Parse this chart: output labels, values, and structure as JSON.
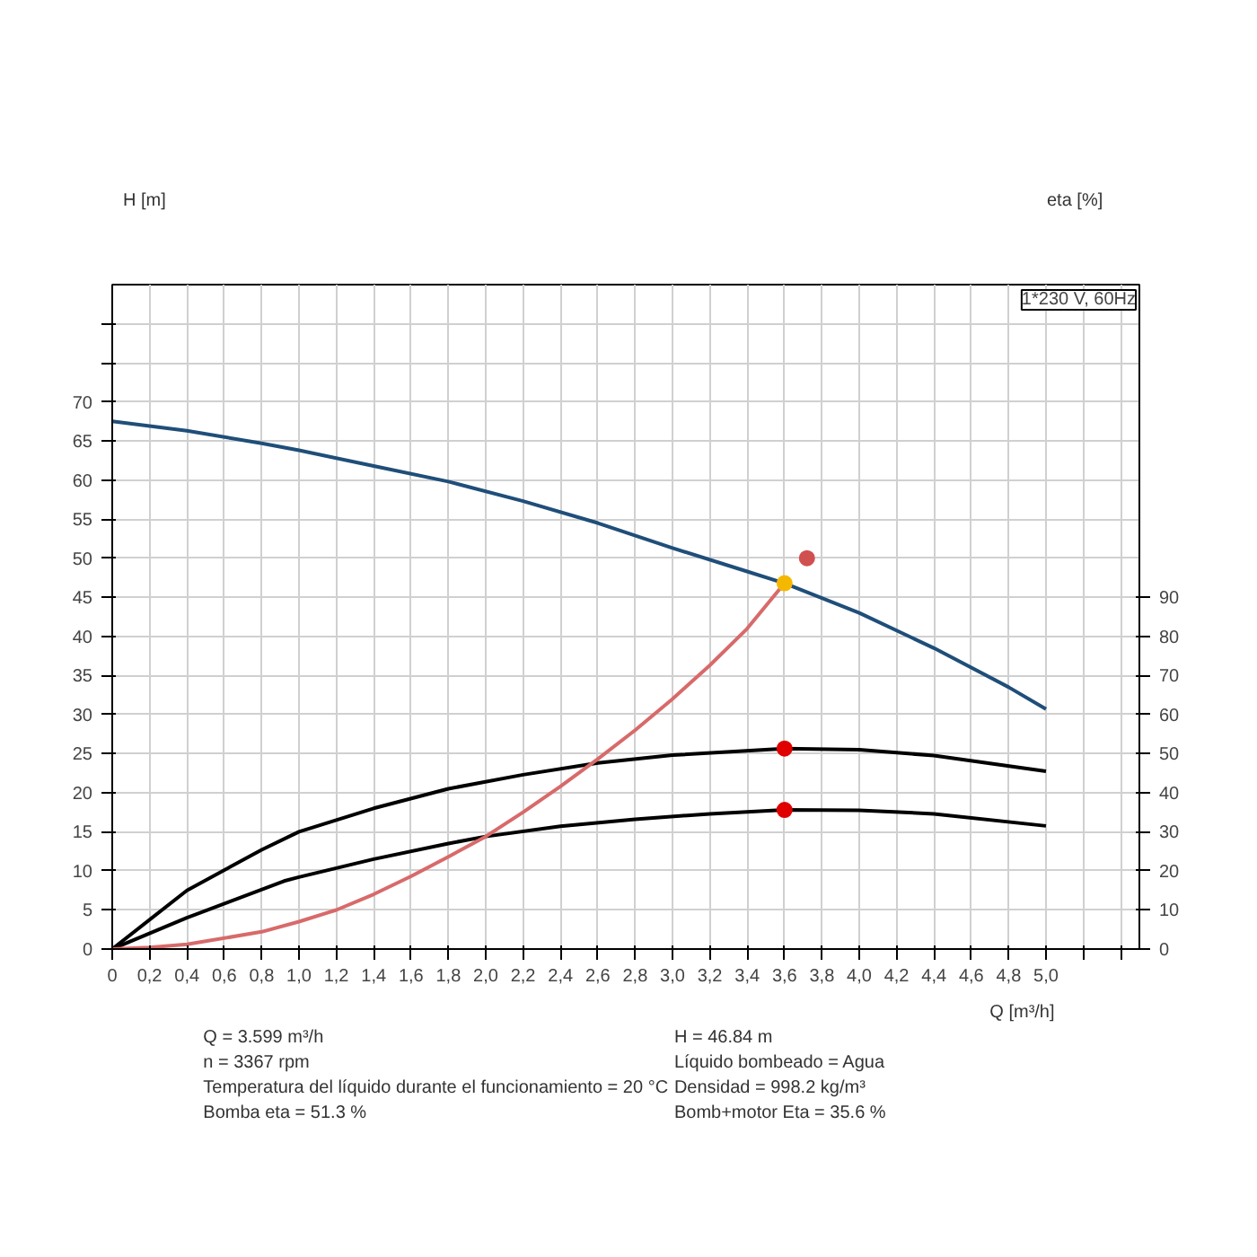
{
  "chart_data": {
    "type": "line",
    "xlabel": "Q [m³/h]",
    "ylabel": "H [m]",
    "y2label": "eta [%]",
    "xlim": [
      0,
      5.5
    ],
    "xticks": [
      {
        "value": 0,
        "label": "0"
      },
      {
        "value": 0.2,
        "label": "0,2"
      },
      {
        "value": 0.4,
        "label": "0,4"
      },
      {
        "value": 0.6,
        "label": "0,6"
      },
      {
        "value": 0.8,
        "label": "0,8"
      },
      {
        "value": 1.0,
        "label": "1,0"
      },
      {
        "value": 1.2,
        "label": "1,2"
      },
      {
        "value": 1.4,
        "label": "1,4"
      },
      {
        "value": 1.6,
        "label": "1,6"
      },
      {
        "value": 1.8,
        "label": "1,8"
      },
      {
        "value": 2.0,
        "label": "2,0"
      },
      {
        "value": 2.2,
        "label": "2,2"
      },
      {
        "value": 2.4,
        "label": "2,4"
      },
      {
        "value": 2.6,
        "label": "2,6"
      },
      {
        "value": 2.8,
        "label": "2,8"
      },
      {
        "value": 3.0,
        "label": "3,0"
      },
      {
        "value": 3.2,
        "label": "3,2"
      },
      {
        "value": 3.4,
        "label": "3,4"
      },
      {
        "value": 3.6,
        "label": "3,6"
      },
      {
        "value": 3.8,
        "label": "3,8"
      },
      {
        "value": 4.0,
        "label": "4,0"
      },
      {
        "value": 4.2,
        "label": "4,2"
      },
      {
        "value": 4.4,
        "label": "4,4"
      },
      {
        "value": 4.6,
        "label": "4,6"
      },
      {
        "value": 4.8,
        "label": "4,8"
      },
      {
        "value": 5.0,
        "label": "5,0"
      },
      {
        "value": 5.2,
        "label": null
      },
      {
        "value": 5.4,
        "label": null
      }
    ],
    "ylim": [
      0,
      85
    ],
    "yticks": [
      0,
      5,
      10,
      15,
      20,
      25,
      30,
      35,
      40,
      45,
      50,
      55,
      60,
      65,
      70,
      {
        "value": 75,
        "label": null
      },
      {
        "value": 80,
        "label": null
      }
    ],
    "y2lim": [
      0,
      170
    ],
    "y2ticks": [
      0,
      10,
      20,
      30,
      40,
      50,
      60,
      70,
      80,
      90
    ],
    "grid": true,
    "series": [
      {
        "color": "#1f4e79",
        "x": [
          0,
          0.4,
          0.8,
          1.0,
          1.4,
          1.8,
          2.2,
          2.6,
          3.0,
          3.4,
          3.6,
          4.0,
          4.4,
          4.8,
          5.0
        ],
        "values": [
          67.5,
          66.3,
          64.7,
          63.8,
          61.8,
          59.8,
          57.3,
          54.5,
          51.3,
          48.3,
          46.8,
          43.0,
          38.5,
          33.5,
          30.7
        ]
      },
      {
        "color": "#000000",
        "axis": "y2",
        "x": [
          0,
          0.4,
          0.8,
          1.0,
          1.4,
          1.8,
          2.2,
          2.6,
          3.0,
          3.6,
          4.0,
          4.4,
          5.0
        ],
        "values": [
          0,
          15,
          25.4,
          30,
          36,
          41,
          44.6,
          47.6,
          49.6,
          51.3,
          51,
          49.5,
          45.5
        ]
      },
      {
        "color": "#000000",
        "axis": "y2",
        "x": [
          0,
          0.4,
          0.92,
          1.0,
          1.4,
          1.8,
          2.0,
          2.4,
          2.8,
          3.2,
          3.6,
          4.0,
          4.4,
          5.0
        ],
        "values": [
          0,
          8,
          17.4,
          18.4,
          23,
          27,
          28.8,
          31.4,
          33.2,
          34.6,
          35.6,
          35.5,
          34.6,
          31.5
        ]
      },
      {
        "color": "#d86a6a",
        "x": [
          0,
          0.2,
          0.4,
          0.8,
          1.0,
          1.2,
          1.4,
          1.6,
          1.8,
          2.0,
          2.2,
          2.4,
          2.6,
          2.8,
          3.0,
          3.2,
          3.4,
          3.6
        ],
        "values": [
          0,
          0.2,
          0.6,
          2.2,
          3.5,
          5,
          7,
          9.3,
          11.8,
          14.4,
          17.5,
          20.8,
          24.3,
          28,
          32,
          36.3,
          41,
          46.8
        ]
      },
      {
        "type": "scatter",
        "color": "#f5b800",
        "x": [
          3.6
        ],
        "values": [
          46.8
        ]
      },
      {
        "type": "scatter",
        "color": "#e00000",
        "axis": "y2",
        "x": [
          3.6,
          3.6
        ],
        "values": [
          51.3,
          35.6
        ]
      },
      {
        "type": "scatter",
        "color": "#d05050",
        "x": [
          3.72
        ],
        "values": [
          50
        ]
      }
    ],
    "annotations": [
      "1*230 V, 60Hz",
      "Q = 3.599 m³/h",
      "n = 3367 rpm",
      "Temperatura del líquido durante el funcionamiento = 20 °C",
      "Bomba eta = 51.3 %",
      "H = 46.84 m",
      "Líquido bombeado = Agua",
      "Densidad = 998.2 kg/m³",
      "Bomb+motor Eta = 35.6 %"
    ]
  }
}
